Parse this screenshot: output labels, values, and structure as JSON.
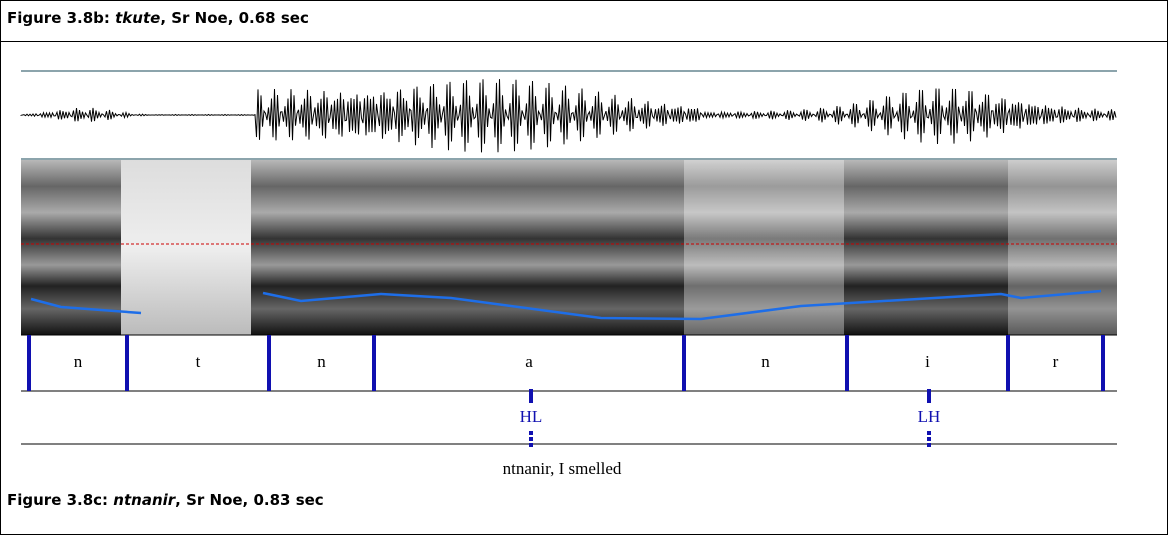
{
  "figure_b": {
    "label": "Figure 3.8b:",
    "word": "tkute",
    "rest": ", Sr Noe, 0.68 sec"
  },
  "segments": [
    "n",
    "t",
    "n",
    "a",
    "n",
    "i",
    "r"
  ],
  "tones": [
    "HL",
    "LH"
  ],
  "gloss": "ntnanir, I smelled",
  "figure_c": {
    "label": "Figure 3.8c:",
    "word": "ntnanir",
    "rest": ", Sr Noe, 0.83 sec"
  }
}
